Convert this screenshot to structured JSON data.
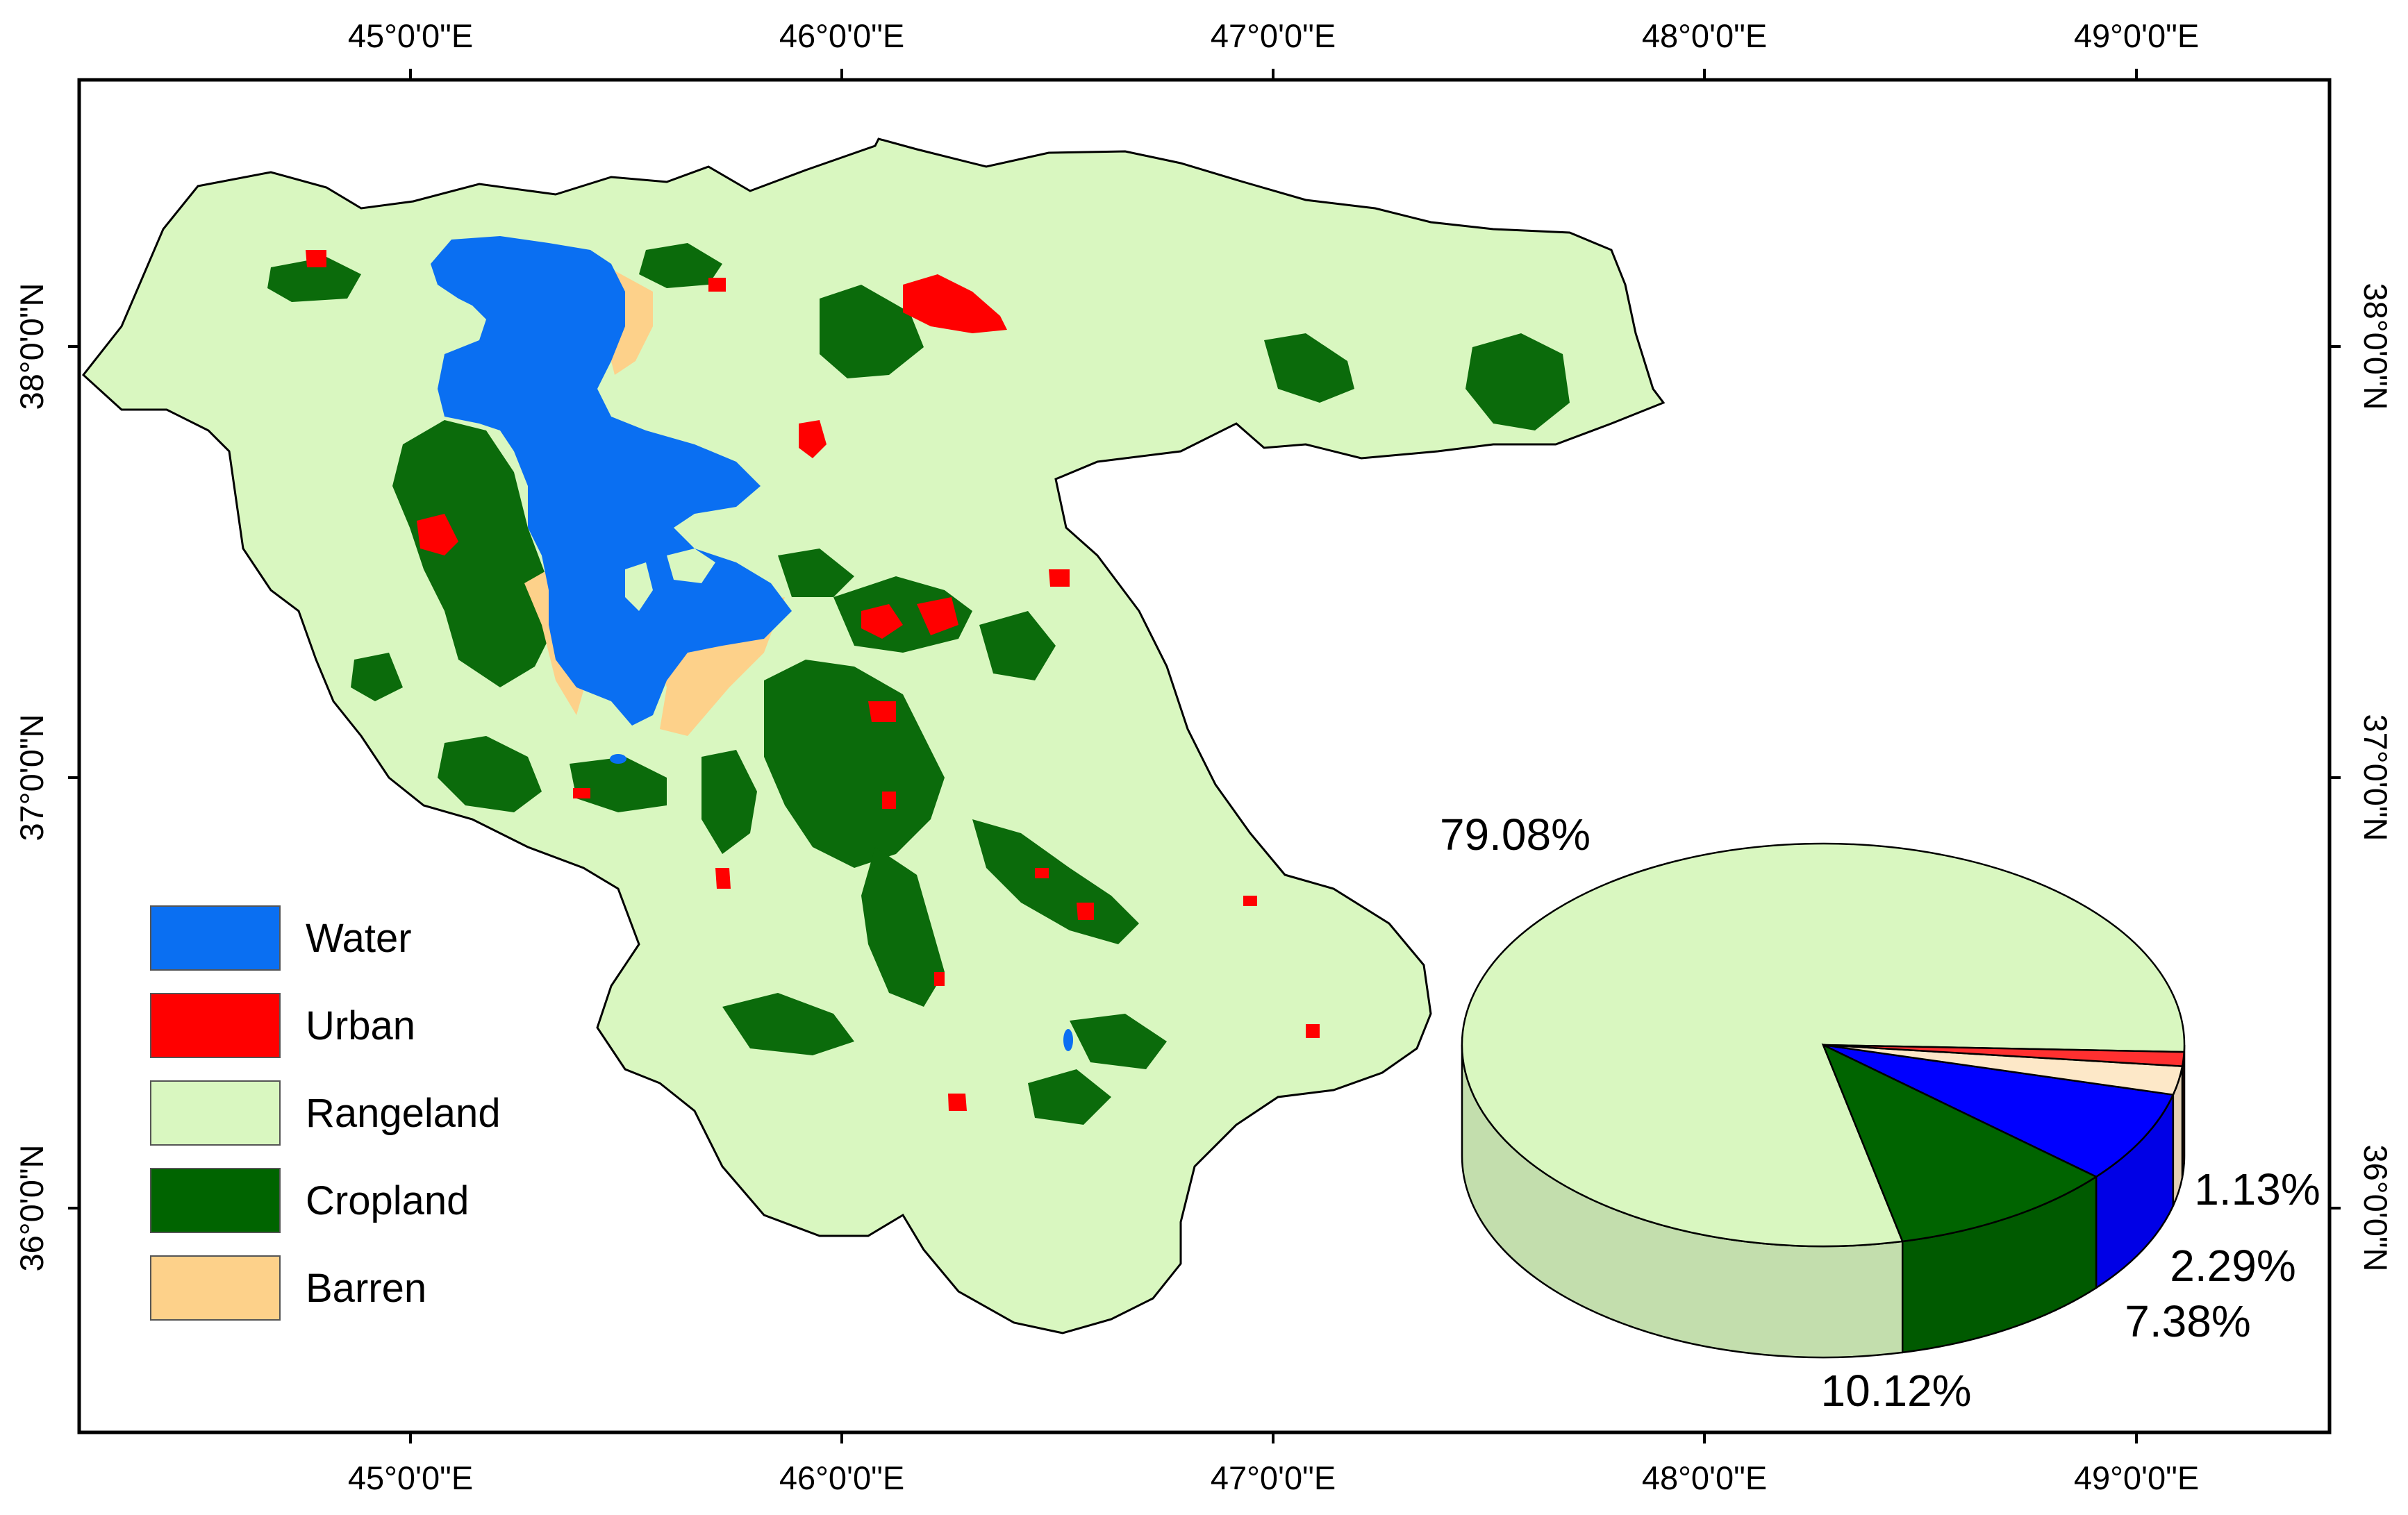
{
  "axes": {
    "longitude_labels": [
      "45°0'0\"E",
      "46°0'0\"E",
      "47°0'0\"E",
      "48°0'0\"E",
      "49°0'0\"E"
    ],
    "latitude_labels": [
      "38°0'0\"N",
      "37°0'0\"N",
      "36°0'0\"N"
    ]
  },
  "legend": {
    "items": [
      {
        "label": "Water",
        "color": "#0a6ff2"
      },
      {
        "label": "Urban",
        "color": "#ff0000"
      },
      {
        "label": "Rangeland",
        "color": "#d9f7c0"
      },
      {
        "label": "Cropland",
        "color": "#006400"
      },
      {
        "label": "Barren",
        "color": "#fdd18a"
      }
    ]
  },
  "chart_data": {
    "type": "pie",
    "style": "3d",
    "slices": [
      {
        "category": "Rangeland",
        "value": 79.08,
        "label": "79.08%",
        "color": "#d9f7c0"
      },
      {
        "category": "Cropland",
        "value": 10.12,
        "label": "10.12%",
        "color": "#006400"
      },
      {
        "category": "Water",
        "value": 7.38,
        "label": "7.38%",
        "color": "#0000ff"
      },
      {
        "category": "Barren",
        "value": 2.29,
        "label": "2.29%",
        "color": "#fde8c8"
      },
      {
        "category": "Urban",
        "value": 1.13,
        "label": "1.13%",
        "color": "#ff3030"
      }
    ]
  }
}
